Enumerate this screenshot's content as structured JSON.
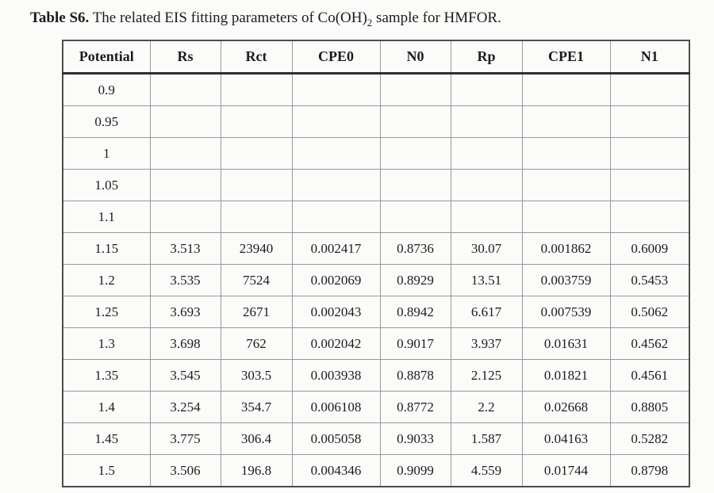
{
  "title": {
    "bold": "Table S6.",
    "pre": " The related EIS fitting parameters of Co(OH)",
    "sub": "2",
    "post": " sample for HMFOR."
  },
  "table": {
    "headers": [
      "Potential",
      "Rs",
      "Rct",
      "CPE0",
      "N0",
      "Rp",
      "CPE1",
      "N1"
    ],
    "rows": [
      [
        "0.9",
        "",
        "",
        "",
        "",
        "",
        "",
        ""
      ],
      [
        "0.95",
        "",
        "",
        "",
        "",
        "",
        "",
        ""
      ],
      [
        "1",
        "",
        "",
        "",
        "",
        "",
        "",
        ""
      ],
      [
        "1.05",
        "",
        "",
        "",
        "",
        "",
        "",
        ""
      ],
      [
        "1.1",
        "",
        "",
        "",
        "",
        "",
        "",
        ""
      ],
      [
        "1.15",
        "3.513",
        "23940",
        "0.002417",
        "0.8736",
        "30.07",
        "0.001862",
        "0.6009"
      ],
      [
        "1.2",
        "3.535",
        "7524",
        "0.002069",
        "0.8929",
        "13.51",
        "0.003759",
        "0.5453"
      ],
      [
        "1.25",
        "3.693",
        "2671",
        "0.002043",
        "0.8942",
        "6.617",
        "0.007539",
        "0.5062"
      ],
      [
        "1.3",
        "3.698",
        "762",
        "0.002042",
        "0.9017",
        "3.937",
        "0.01631",
        "0.4562"
      ],
      [
        "1.35",
        "3.545",
        "303.5",
        "0.003938",
        "0.8878",
        "2.125",
        "0.01821",
        "0.4561"
      ],
      [
        "1.4",
        "3.254",
        "354.7",
        "0.006108",
        "0.8772",
        "2.2",
        "0.02668",
        "0.8805"
      ],
      [
        "1.45",
        "3.775",
        "306.4",
        "0.005058",
        "0.9033",
        "1.587",
        "0.04163",
        "0.5282"
      ],
      [
        "1.5",
        "3.506",
        "196.8",
        "0.004346",
        "0.9099",
        "4.559",
        "0.01744",
        "0.8798"
      ]
    ]
  },
  "colors": {
    "text": "#1c1c1c",
    "outer_border": "#4d4d4d",
    "header_rule": "#2f2f2f",
    "grid": "#999999",
    "background": "#fbfbfa"
  }
}
